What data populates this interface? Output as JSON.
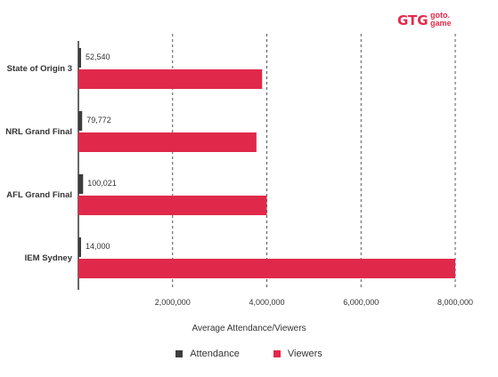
{
  "logo": {
    "mark": "GTG",
    "line1": "goto.",
    "line2": "game",
    "color": "#e5294b"
  },
  "colors": {
    "attendance": "#3d3d3d",
    "viewers": "#e0294a"
  },
  "chart_data": {
    "type": "bar",
    "orientation": "horizontal",
    "categories": [
      "State of Origin 3",
      "NRL Grand Final",
      "AFL Grand Final",
      "IEM Sydney"
    ],
    "series": [
      {
        "name": "Attendance",
        "values": [
          52540,
          79772,
          100021,
          14000
        ],
        "labels": [
          "52,540",
          "79,772",
          "100,021",
          "14,000"
        ]
      },
      {
        "name": "Viewers",
        "values": [
          3900000,
          3780000,
          4000000,
          8000000
        ]
      }
    ],
    "xlabel": "Average Attendance/Viewers",
    "xlim": [
      0,
      8000000
    ],
    "xticks": [
      2000000,
      4000000,
      6000000,
      8000000
    ],
    "xtick_labels": [
      "2,000,000",
      "4,000,000",
      "6,000,000",
      "8,000,000"
    ],
    "grid": "vertical dashed",
    "legend": "bottom-center"
  }
}
